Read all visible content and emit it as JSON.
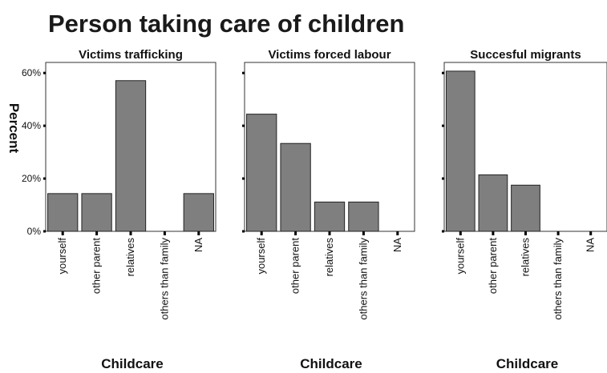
{
  "chart_data": {
    "type": "bar",
    "title": "Person taking care of children",
    "ylabel": "Percent",
    "ylim": [
      0,
      64
    ],
    "y_ticks": [
      0,
      20,
      40,
      60
    ],
    "y_tick_labels": [
      "0%",
      "20%",
      "40%",
      "60%"
    ],
    "categories": [
      "yourself",
      "other parent",
      "relatives",
      "others than family",
      "NA"
    ],
    "panels": [
      {
        "title": "Victims trafficking",
        "xlabel": "Childcare",
        "values": [
          14.3,
          14.3,
          57.1,
          0,
          14.3
        ]
      },
      {
        "title": "Victims forced labour",
        "xlabel": "Childcare",
        "values": [
          44.4,
          33.3,
          11.1,
          11.1,
          0
        ]
      },
      {
        "title": "Succesful migrants",
        "xlabel": "Childcare",
        "values": [
          60.7,
          21.4,
          17.5,
          0,
          0
        ]
      }
    ]
  }
}
